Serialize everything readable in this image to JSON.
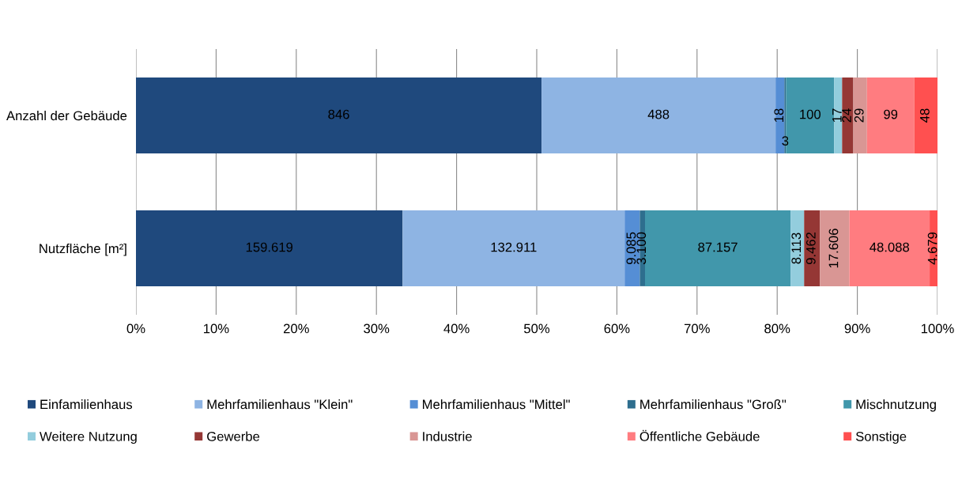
{
  "chart_data": {
    "type": "bar",
    "orientation": "horizontal",
    "stacked": true,
    "categories": [
      "Anzahl der Gebäude",
      "Nutzfläche [m²]"
    ],
    "series": [
      {
        "name": "Einfamilienhaus",
        "color": "#1f497d",
        "values": [
          50.6,
          33.27
        ]
      },
      {
        "name": "Mehrfamilienhaus \"Klein\"",
        "color": "#8eb4e3",
        "values": [
          29.2,
          27.7
        ]
      },
      {
        "name": "Mehrfamilienhaus \"Mittel\"",
        "color": "#558ed5",
        "values": [
          1.1,
          1.89
        ]
      },
      {
        "name": "Mehrfamilienhaus \"Groß\"",
        "color": "#2e6e8e",
        "values": [
          0.2,
          0.65
        ]
      },
      {
        "name": "Mischnutzung",
        "color": "#4197ab",
        "values": [
          6.0,
          18.16
        ]
      },
      {
        "name": "Weitere Nutzung",
        "color": "#93cddd",
        "values": [
          1.0,
          1.69
        ]
      },
      {
        "name": "Gewerbe",
        "color": "#953735",
        "values": [
          1.4,
          1.97
        ]
      },
      {
        "name": "Industrie",
        "color": "#d99694",
        "values": [
          1.7,
          3.67
        ]
      },
      {
        "name": "Öffentliche Gebäude",
        "color": "#ff7c80",
        "values": [
          5.9,
          10.02
        ]
      },
      {
        "name": "Sonstige",
        "color": "#ff5050",
        "values": [
          2.9,
          0.98
        ]
      }
    ],
    "annotations": [
      "846",
      "488",
      "18",
      "3",
      "100",
      "17",
      "24",
      "29",
      "99",
      "48",
      "159.619",
      "132.911",
      "9.085",
      "3.100",
      "87.157",
      "8.113",
      "9.462",
      "17.606",
      "48.088",
      "4.679"
    ],
    "xlim": [
      0,
      100
    ],
    "xticks": [
      {
        "value": 0,
        "label": "0%"
      },
      {
        "value": 10,
        "label": "10%"
      },
      {
        "value": 20,
        "label": "20%"
      },
      {
        "value": 30,
        "label": "30%"
      },
      {
        "value": 40,
        "label": "40%"
      },
      {
        "value": 50,
        "label": "50%"
      },
      {
        "value": 60,
        "label": "60%"
      },
      {
        "value": 70,
        "label": "70%"
      },
      {
        "value": 80,
        "label": "80%"
      },
      {
        "value": 90,
        "label": "90%"
      },
      {
        "value": 100,
        "label": "100%"
      }
    ],
    "grid": "x",
    "legend": "bottom"
  }
}
